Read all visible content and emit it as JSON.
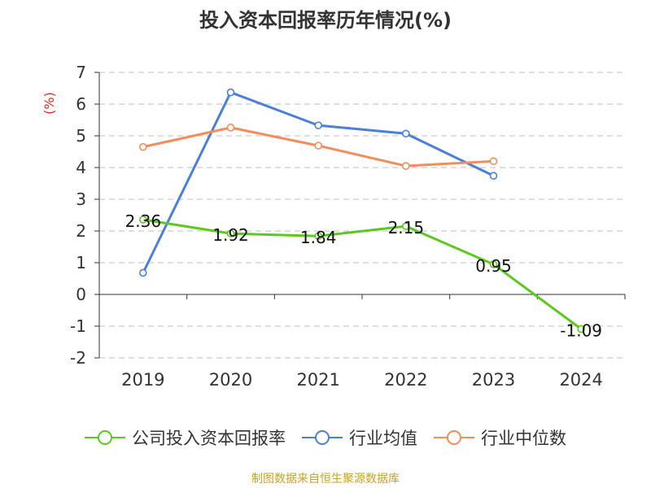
{
  "chart_data": {
    "type": "line",
    "title": "投入资本回报率历年情况(%)",
    "ylabel": "(%)",
    "ylim": [
      -2,
      7
    ],
    "yticks": [
      -2,
      -1,
      0,
      1,
      2,
      3,
      4,
      5,
      6,
      7
    ],
    "categories": [
      "2019",
      "2020",
      "2021",
      "2022",
      "2023",
      "2024"
    ],
    "grid": true,
    "legend_position": "bottom",
    "series": [
      {
        "name": "公司投入资本回报率",
        "color": "#5dc91f",
        "values": [
          2.36,
          1.92,
          1.84,
          2.15,
          0.95,
          -1.09
        ],
        "labels": [
          "2.36",
          "1.92",
          "1.84",
          "2.15",
          "0.95",
          "-1.09"
        ]
      },
      {
        "name": "行业均值",
        "color": "#4a7fdc",
        "values": [
          0.68,
          6.37,
          5.33,
          5.07,
          3.74,
          null
        ]
      },
      {
        "name": "行业中位数",
        "color": "#f58c5a",
        "values": [
          4.65,
          5.26,
          4.69,
          4.05,
          4.2,
          null
        ]
      }
    ]
  },
  "source_note": "制图数据来自恒生聚源数据库"
}
